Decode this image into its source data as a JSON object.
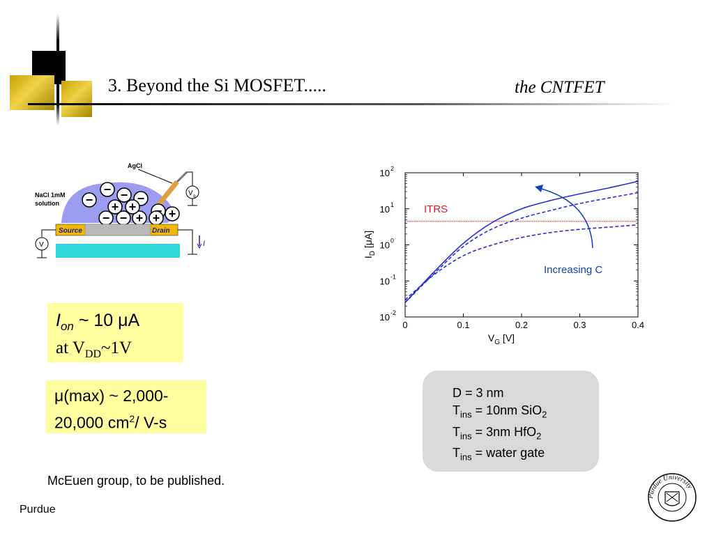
{
  "slide": {
    "title": "3.  Beyond the Si MOSFET.....",
    "subtitle": "the CNTFET"
  },
  "device_diagram": {
    "agcl_label": "AgCl",
    "solution_label_line1": "NaCl 1mM",
    "solution_label_line2": "solution",
    "source_label": "Source",
    "drain_label": "Drain",
    "vg_symbol": "V",
    "vg_subscript": "g",
    "vsd_symbol": "V",
    "current_label": "I",
    "ion_signs": [
      "−",
      "−",
      "−",
      "−",
      "−",
      "−",
      "−",
      "+",
      "+",
      "+",
      "+",
      "+"
    ],
    "colors": {
      "solution": "#9c9cf0",
      "contacts": "#f0b800",
      "substrate": "#33d9d9"
    }
  },
  "info_boxes": {
    "ion": {
      "line1_symbol": "I",
      "line1_sub": "on",
      "line1_rest": " ~ 10 μA",
      "line2_prefix": "at V",
      "line2_sub": "DD",
      "line2_rest": "~1V"
    },
    "mobility": {
      "line1": "μ(max) ~ 2,000-",
      "line2_prefix": "20,000 cm",
      "line2_sup": "2",
      "line2_rest": "/ V-s"
    },
    "box_color": "#ffffa0"
  },
  "params": {
    "line1": "D =    3 nm",
    "t": "T",
    "ins": "ins",
    "line2_rest": " = 10nm SiO",
    "line2_sub": "2",
    "line3_rest": " =  3nm HfO",
    "line3_sub": "2",
    "line4_rest": "  = water gate"
  },
  "footer": {
    "reference": "McEuen  group, to be published.",
    "org": "Purdue"
  },
  "seal": {
    "text": "Purdue University"
  },
  "chart_data": {
    "type": "line",
    "title": "",
    "xlabel_main": "V",
    "xlabel_sub": "G",
    "xlabel_unit": " [V]",
    "ylabel_main": "I",
    "ylabel_sub": "D",
    "ylabel_unit": " [μA]",
    "xlim": [
      0,
      0.4
    ],
    "ylim_log10": [
      -2,
      2
    ],
    "y_scale": "log",
    "x_ticks": [
      "0",
      "0.1",
      "0.2",
      "0.3",
      "0.4"
    ],
    "y_ticks": [
      {
        "base": "10",
        "exp": "2"
      },
      {
        "base": "10",
        "exp": "1"
      },
      {
        "base": "10",
        "exp": "0"
      },
      {
        "base": "10",
        "exp": "-1"
      },
      {
        "base": "10",
        "exp": "-2"
      }
    ],
    "grid": false,
    "annotations": {
      "itrs": "ITRS",
      "itrs_value": 4.5,
      "increasing": "Increasing C"
    },
    "series": [
      {
        "style": "solid",
        "x": [
          0,
          0.05,
          0.1,
          0.15,
          0.2,
          0.25,
          0.3,
          0.35,
          0.4
        ],
        "values": [
          0.025,
          0.18,
          1.1,
          4.2,
          10,
          17,
          26,
          38,
          58
        ]
      },
      {
        "style": "dashed",
        "x": [
          0,
          0.05,
          0.1,
          0.15,
          0.2,
          0.25,
          0.3,
          0.35,
          0.4
        ],
        "values": [
          0.025,
          0.16,
          0.9,
          2.8,
          5.5,
          9,
          14,
          20,
          28
        ]
      },
      {
        "style": "dashed",
        "x": [
          0,
          0.05,
          0.1,
          0.15,
          0.2,
          0.25,
          0.3,
          0.35,
          0.4
        ],
        "values": [
          0.03,
          0.15,
          0.5,
          1.0,
          1.6,
          2.2,
          2.7,
          3.1,
          3.6
        ]
      }
    ],
    "colors": {
      "series": "#2b2bd8",
      "itrs": "#e81818",
      "arrow": "#1040c0"
    }
  }
}
